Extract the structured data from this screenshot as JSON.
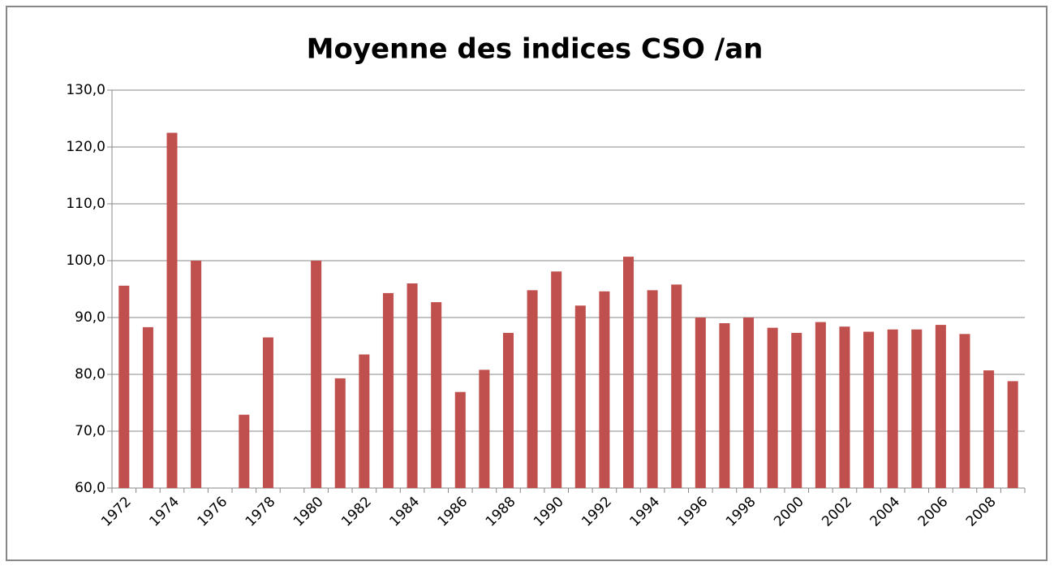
{
  "chart_data": {
    "type": "bar",
    "title": "Moyenne des indices CSO /an",
    "categories": [
      "1972",
      null,
      "1974",
      null,
      "1976",
      null,
      "1978",
      null,
      "1980",
      null,
      "1982",
      null,
      "1984",
      null,
      "1986",
      null,
      "1988",
      null,
      "1990",
      null,
      "1992",
      null,
      "1994",
      null,
      "1996",
      null,
      "1998",
      null,
      "2000",
      null,
      "2002",
      null,
      "2004",
      null,
      "2006",
      null,
      "2008",
      null
    ],
    "values": [
      95.6,
      88.3,
      122.5,
      100,
      null,
      72.9,
      86.5,
      null,
      100,
      79.3,
      83.5,
      94.3,
      96,
      92.7,
      76.9,
      80.8,
      87.3,
      94.8,
      98.1,
      92.1,
      94.6,
      100.7,
      94.8,
      95.8,
      90,
      89,
      90,
      88.2,
      87.3,
      89.2,
      88.4,
      87.5,
      87.9,
      87.9,
      88.7,
      87.1,
      80.7,
      78.8
    ],
    "color": "#c0504d",
    "ylim": [
      60,
      130
    ],
    "yticks": [
      {
        "value": 60,
        "label": "60,0"
      },
      {
        "value": 70,
        "label": "70,0"
      },
      {
        "value": 80,
        "label": "80,0"
      },
      {
        "value": 90,
        "label": "90,0"
      },
      {
        "value": 100,
        "label": "100,0"
      },
      {
        "value": 110,
        "label": "110,0"
      },
      {
        "value": 120,
        "label": "120,0"
      },
      {
        "value": 130,
        "label": "130,0"
      }
    ],
    "grid": true
  }
}
